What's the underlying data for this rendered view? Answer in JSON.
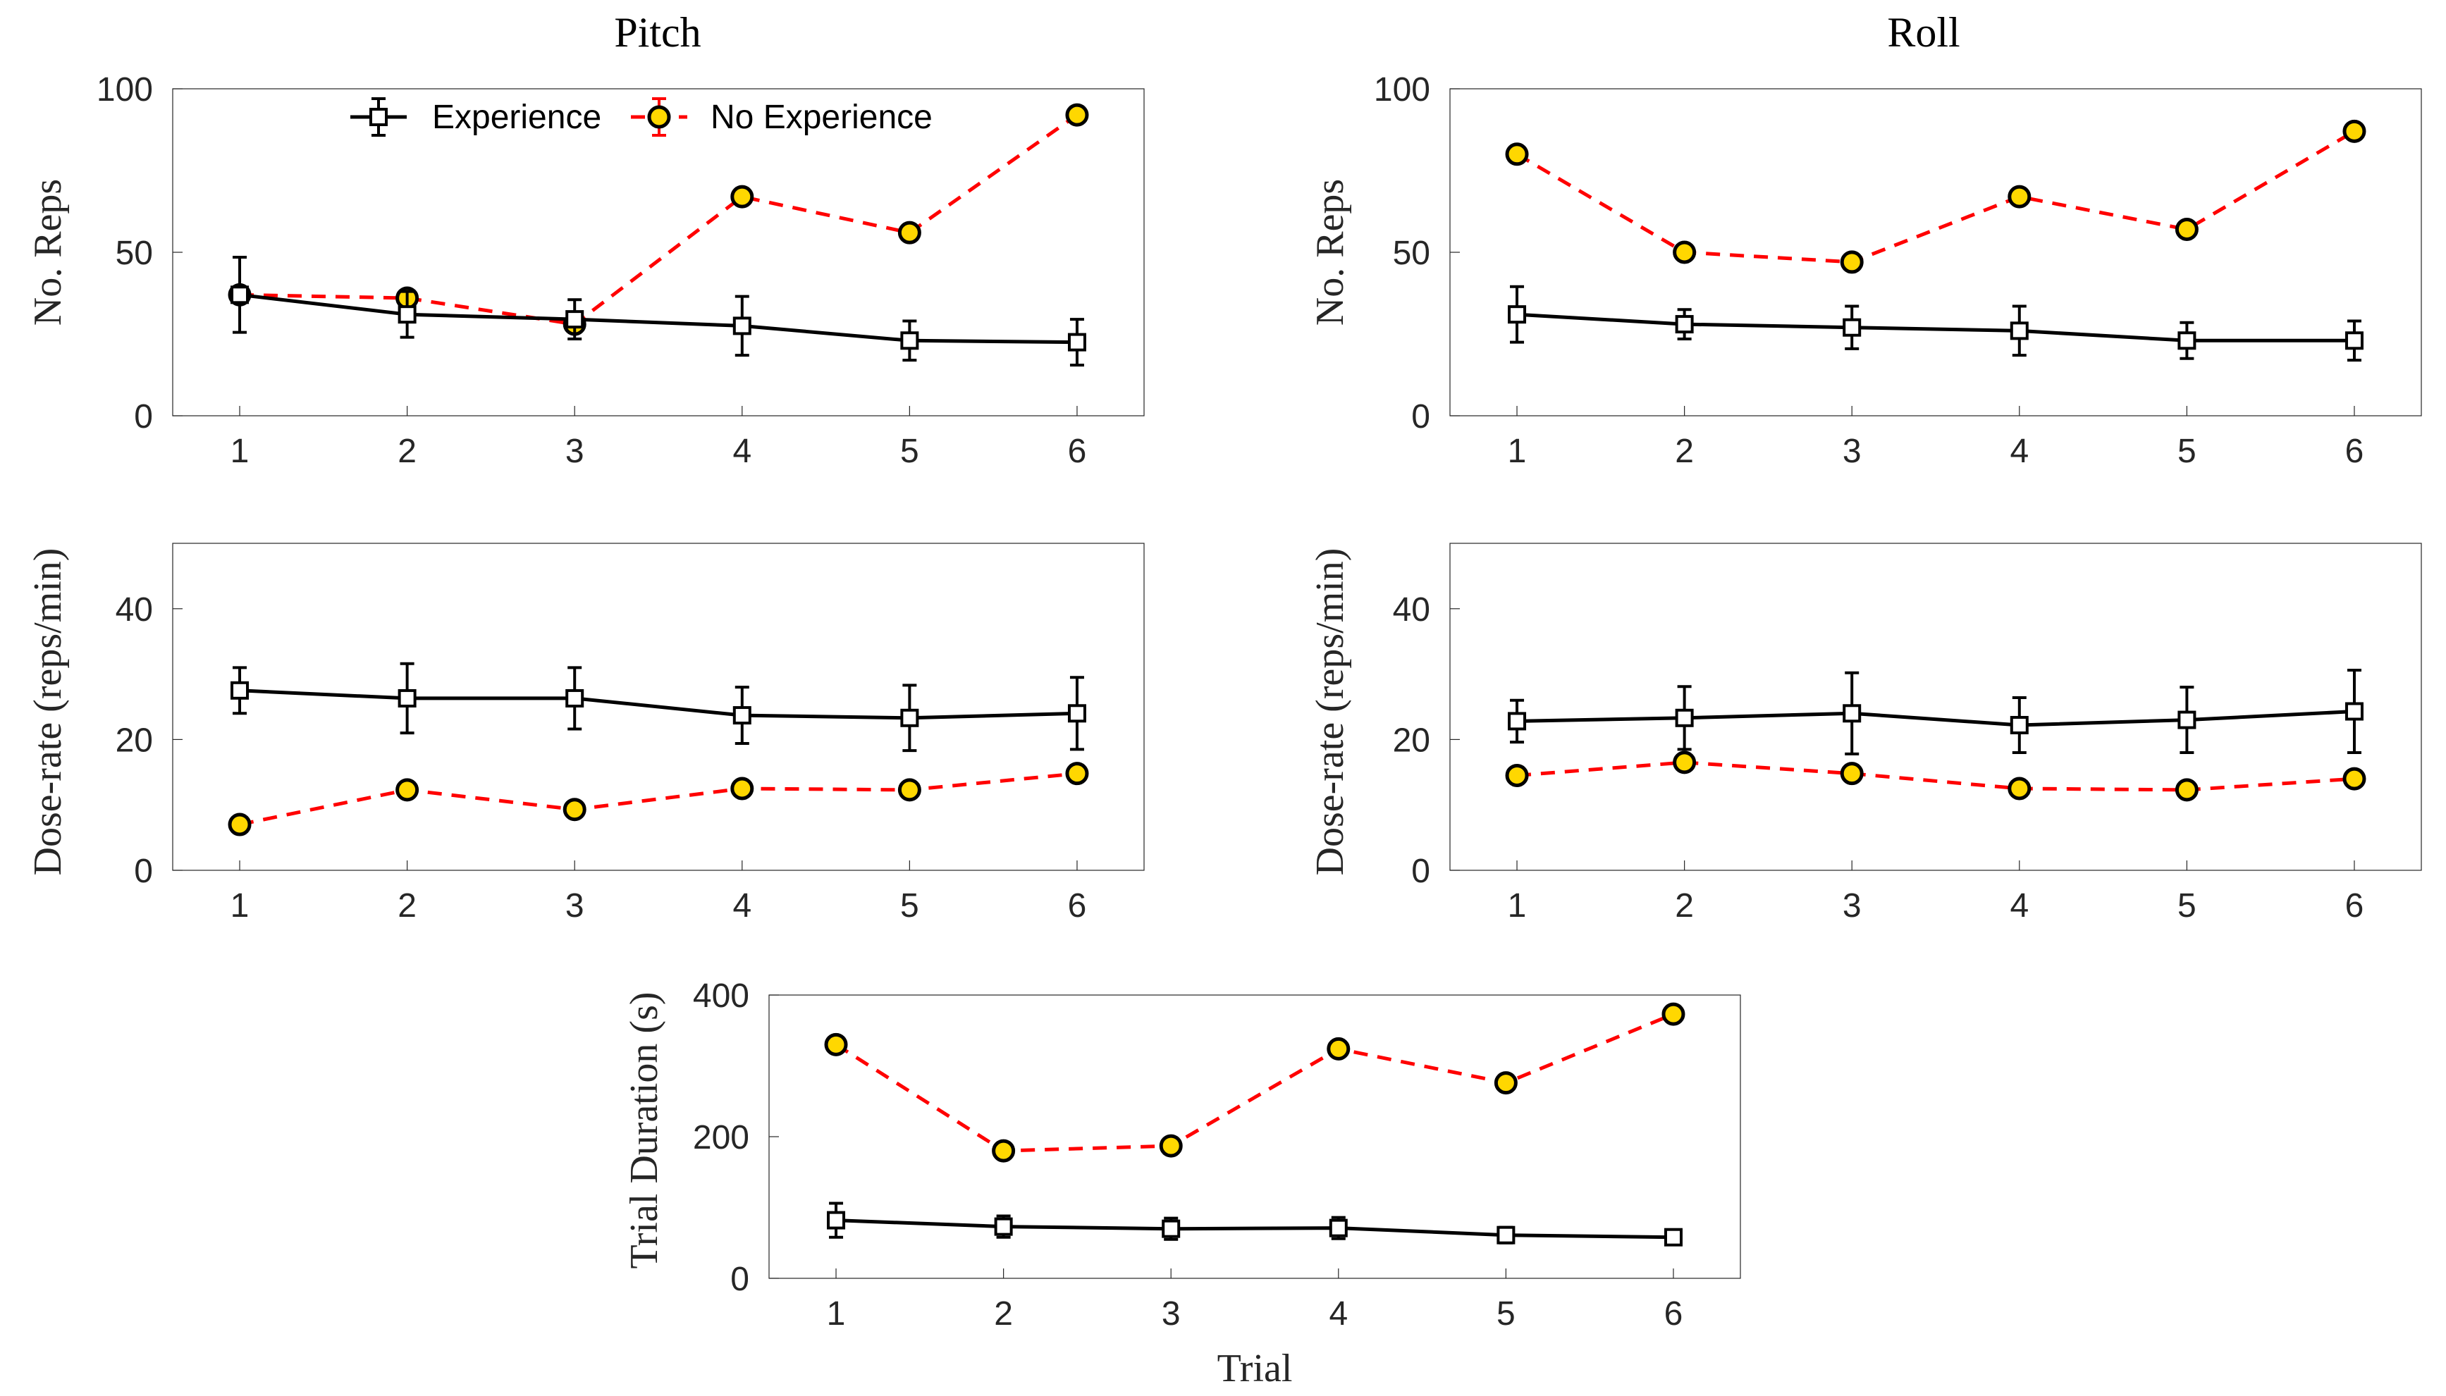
{
  "colors": {
    "experience": "#000000",
    "no_experience_line": "#ff0000",
    "no_experience_marker_fill": "#ffd700",
    "axis": "#262626"
  },
  "legend": {
    "experience": "Experience",
    "no_experience": "No Experience"
  },
  "chart_data": [
    {
      "id": "pitch-reps",
      "type": "line",
      "title": "Pitch",
      "xlabel": "",
      "ylabel": "No. Reps",
      "x": [
        1,
        2,
        3,
        4,
        5,
        6
      ],
      "xlim": [
        0.6,
        6.4
      ],
      "ylim": [
        0,
        100
      ],
      "yticks": [
        0,
        50,
        100
      ],
      "legend_location": "top",
      "series": [
        {
          "name": "Experience",
          "values": [
            37,
            31,
            29.5,
            27.5,
            23,
            22.5
          ],
          "err": [
            11.5,
            7,
            6,
            9,
            6,
            7
          ]
        },
        {
          "name": "No Experience",
          "values": [
            37,
            36,
            28,
            67,
            56,
            92
          ],
          "err": [
            0,
            0,
            0,
            0,
            0,
            0
          ]
        }
      ]
    },
    {
      "id": "roll-reps",
      "type": "line",
      "title": "Roll",
      "xlabel": "",
      "ylabel": "No. Reps",
      "x": [
        1,
        2,
        3,
        4,
        5,
        6
      ],
      "xlim": [
        0.6,
        6.4
      ],
      "ylim": [
        0,
        100
      ],
      "yticks": [
        0,
        50,
        100
      ],
      "series": [
        {
          "name": "Experience",
          "values": [
            31,
            28,
            27,
            26,
            23,
            23
          ],
          "err": [
            8.5,
            4.5,
            6.5,
            7.5,
            5.5,
            6
          ]
        },
        {
          "name": "No Experience",
          "values": [
            80,
            50,
            47,
            67,
            57,
            87
          ],
          "err": [
            0,
            0,
            0,
            0,
            0,
            0
          ]
        }
      ]
    },
    {
      "id": "pitch-dose",
      "type": "line",
      "title": "",
      "xlabel": "",
      "ylabel": "Dose-rate (reps/min)",
      "x": [
        1,
        2,
        3,
        4,
        5,
        6
      ],
      "xlim": [
        0.6,
        6.4
      ],
      "ylim": [
        0,
        50
      ],
      "yticks": [
        0,
        20,
        40
      ],
      "series": [
        {
          "name": "Experience",
          "values": [
            27.5,
            26.3,
            26.3,
            23.7,
            23.3,
            24
          ],
          "err": [
            3.5,
            5.3,
            4.7,
            4.3,
            5,
            5.5
          ]
        },
        {
          "name": "No Experience",
          "values": [
            7,
            12.3,
            9.3,
            12.5,
            12.3,
            14.8
          ],
          "err": [
            0,
            0,
            0,
            0,
            0,
            0
          ]
        }
      ]
    },
    {
      "id": "roll-dose",
      "type": "line",
      "title": "",
      "xlabel": "",
      "ylabel": "Dose-rate (reps/min)",
      "x": [
        1,
        2,
        3,
        4,
        5,
        6
      ],
      "xlim": [
        0.6,
        6.4
      ],
      "ylim": [
        0,
        50
      ],
      "yticks": [
        0,
        20,
        40
      ],
      "series": [
        {
          "name": "Experience",
          "values": [
            22.8,
            23.3,
            24,
            22.2,
            23,
            24.3
          ],
          "err": [
            3.2,
            4.8,
            6.2,
            4.2,
            5,
            6.3
          ]
        },
        {
          "name": "No Experience",
          "values": [
            14.5,
            16.5,
            14.8,
            12.5,
            12.3,
            14
          ],
          "err": [
            0,
            0,
            0,
            0,
            0,
            0
          ]
        }
      ]
    },
    {
      "id": "trial-duration",
      "type": "line",
      "title": "",
      "xlabel": "Trial",
      "ylabel": "Trial Duration (s)",
      "x": [
        1,
        2,
        3,
        4,
        5,
        6
      ],
      "xlim": [
        0.6,
        6.4
      ],
      "ylim": [
        0,
        400
      ],
      "yticks": [
        0,
        200,
        400
      ],
      "series": [
        {
          "name": "Experience",
          "values": [
            82,
            73,
            70,
            71,
            61,
            58
          ],
          "err": [
            24,
            15,
            15,
            15,
            11,
            10
          ]
        },
        {
          "name": "No Experience",
          "values": [
            330,
            180,
            187,
            324,
            276,
            373
          ],
          "err": [
            0,
            0,
            0,
            0,
            0,
            0
          ]
        }
      ]
    }
  ]
}
